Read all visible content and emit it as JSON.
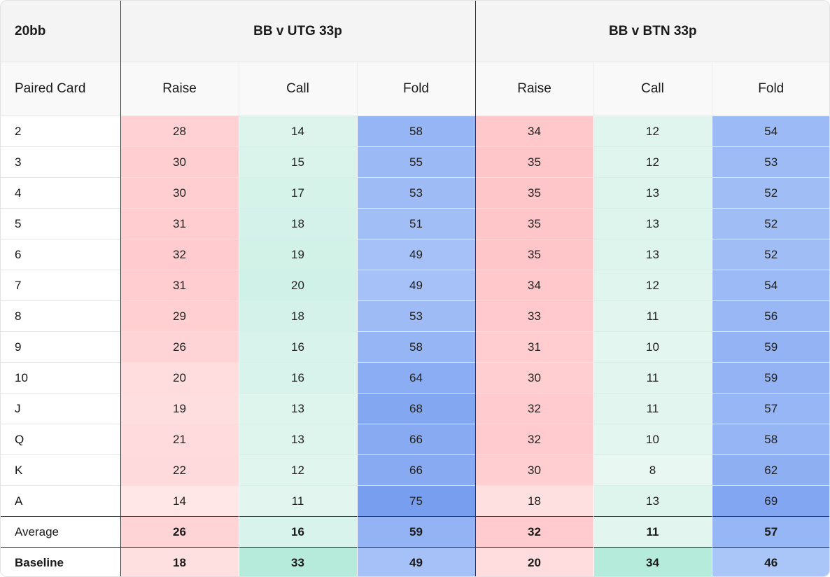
{
  "table": {
    "corner_label": "20bb",
    "row_header_label": "Paired Card",
    "groups": [
      {
        "title": "BB v UTG 33p",
        "columns": [
          "Raise",
          "Call",
          "Fold"
        ]
      },
      {
        "title": "BB v BTN 33p",
        "columns": [
          "Raise",
          "Call",
          "Fold"
        ]
      }
    ],
    "rows": [
      {
        "label": "2",
        "values": [
          "28",
          "14",
          "58",
          "34",
          "12",
          "54"
        ]
      },
      {
        "label": "3",
        "values": [
          "30",
          "15",
          "55",
          "35",
          "12",
          "53"
        ]
      },
      {
        "label": "4",
        "values": [
          "30",
          "17",
          "53",
          "35",
          "13",
          "52"
        ]
      },
      {
        "label": "5",
        "values": [
          "31",
          "18",
          "51",
          "35",
          "13",
          "52"
        ]
      },
      {
        "label": "6",
        "values": [
          "32",
          "19",
          "49",
          "35",
          "13",
          "52"
        ]
      },
      {
        "label": "7",
        "values": [
          "31",
          "20",
          "49",
          "34",
          "12",
          "54"
        ]
      },
      {
        "label": "8",
        "values": [
          "29",
          "18",
          "53",
          "33",
          "11",
          "56"
        ]
      },
      {
        "label": "9",
        "values": [
          "26",
          "16",
          "58",
          "31",
          "10",
          "59"
        ]
      },
      {
        "label": "10",
        "values": [
          "20",
          "16",
          "64",
          "30",
          "11",
          "59"
        ]
      },
      {
        "label": "J",
        "values": [
          "19",
          "13",
          "68",
          "32",
          "11",
          "57"
        ]
      },
      {
        "label": "Q",
        "values": [
          "21",
          "13",
          "66",
          "32",
          "10",
          "58"
        ]
      },
      {
        "label": "K",
        "values": [
          "22",
          "12",
          "66",
          "30",
          "8",
          "62"
        ]
      },
      {
        "label": "A",
        "values": [
          "14",
          "11",
          "75",
          "18",
          "13",
          "69"
        ]
      }
    ],
    "average": {
      "label": "Average",
      "values": [
        "26",
        "16",
        "59",
        "32",
        "11",
        "57"
      ]
    },
    "baseline": {
      "label": "Baseline",
      "values": [
        "18",
        "33",
        "49",
        "20",
        "34",
        "46"
      ]
    }
  },
  "colors": {
    "raise": "#ffc9cc",
    "call": "#d8f3ea",
    "fold": "#8fb0f2",
    "header_bg": "#f4f4f4",
    "group_divider": "#333333"
  }
}
